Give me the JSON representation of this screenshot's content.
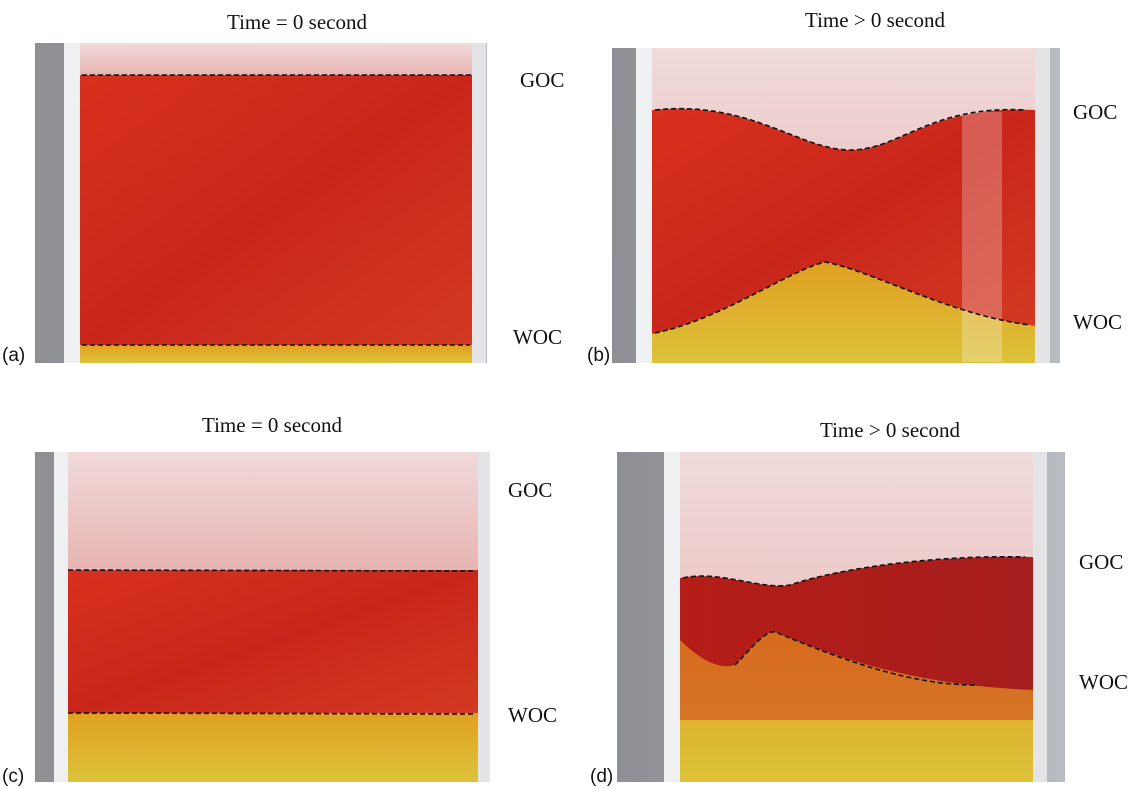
{
  "panels": [
    {
      "label": "(a)",
      "title": "Time = 0 second",
      "goc": "GOC",
      "woc": "WOC"
    },
    {
      "label": "(b)",
      "title": "Time > 0 second",
      "goc": "GOC",
      "woc": "WOC"
    },
    {
      "label": "(c)",
      "title": "Time = 0 second",
      "goc": "GOC",
      "woc": "WOC"
    },
    {
      "label": "(d)",
      "title": "Time > 0 second",
      "goc": "GOC",
      "woc": "WOC"
    }
  ]
}
